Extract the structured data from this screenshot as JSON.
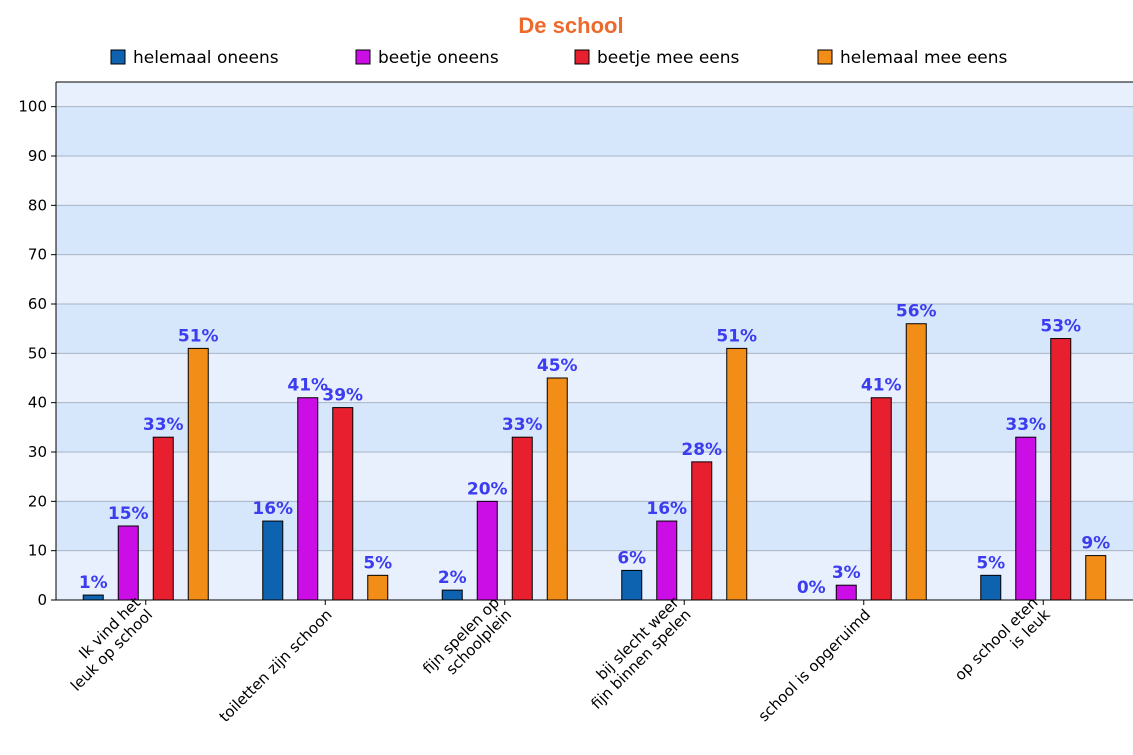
{
  "chart_data": {
    "type": "bar",
    "title": "De school",
    "categories": [
      [
        "Ik vind het",
        "leuk op school"
      ],
      [
        "toiletten zijn schoon"
      ],
      [
        "fijn spelen op",
        "schoolplein"
      ],
      [
        "bij slecht weer",
        "fijn binnen spelen"
      ],
      [
        "school is opgeruimd"
      ],
      [
        "op school eten",
        "is leuk"
      ]
    ],
    "series": [
      {
        "name": "helemaal oneens",
        "color": "#0e63b0",
        "values": [
          1,
          16,
          2,
          6,
          0,
          5
        ]
      },
      {
        "name": "beetje oneens",
        "color": "#cc0ee6",
        "values": [
          15,
          41,
          20,
          16,
          3,
          33
        ]
      },
      {
        "name": "beetje mee eens",
        "color": "#e81f2f",
        "values": [
          33,
          39,
          33,
          28,
          41,
          53
        ]
      },
      {
        "name": "helemaal mee eens",
        "color": "#f28e18",
        "values": [
          51,
          5,
          45,
          51,
          56,
          9
        ]
      }
    ],
    "value_suffix": "%",
    "ylim": [
      0,
      100
    ],
    "yticks": [
      0,
      10,
      20,
      30,
      40,
      50,
      60,
      70,
      80,
      90,
      100
    ],
    "xlabel": "",
    "ylabel": "",
    "grid": true,
    "legend_position": "top"
  }
}
